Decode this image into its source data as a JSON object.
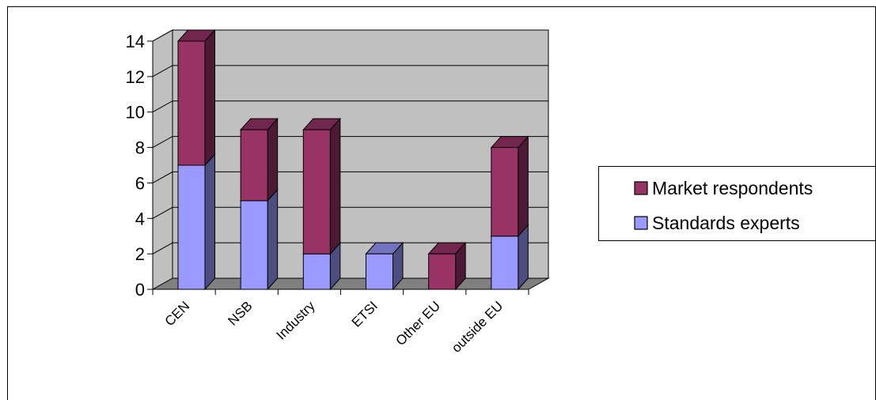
{
  "chart_data": {
    "type": "bar",
    "stacked": true,
    "three_d": true,
    "categories": [
      "CEN",
      "NSB",
      "Industry",
      "ETSI",
      "Other EU",
      "outside EU"
    ],
    "series": [
      {
        "name": "Standards experts",
        "values": [
          7,
          5,
          2,
          2,
          0,
          3
        ],
        "color": "#9999ff"
      },
      {
        "name": "Market respondents",
        "values": [
          7,
          4,
          7,
          0,
          2,
          5
        ],
        "color": "#993366"
      }
    ],
    "title": "",
    "xlabel": "",
    "ylabel": "",
    "ylim": [
      0,
      14
    ],
    "yticks": [
      "0",
      "2",
      "4",
      "6",
      "8",
      "10",
      "12",
      "14"
    ],
    "grid": true,
    "legend_position": "right",
    "legend_order": [
      "Market respondents",
      "Standards experts"
    ],
    "wall_color": "#c0c0c0",
    "floor_color": "#808080"
  }
}
